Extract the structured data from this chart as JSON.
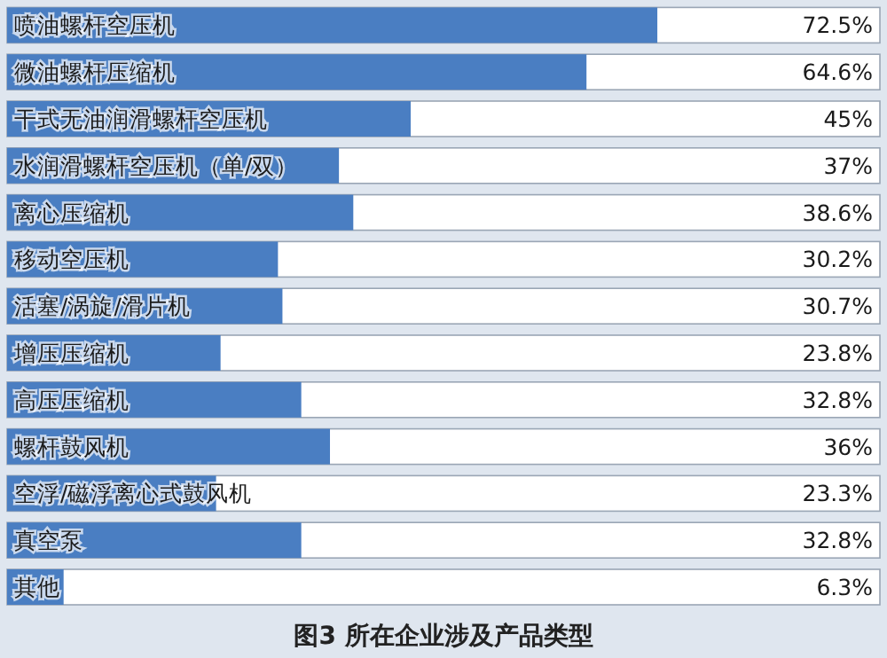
{
  "chart_data": {
    "type": "bar",
    "orientation": "horizontal",
    "title": "图3 所在企业涉及产品类型",
    "categories": [
      "喷油螺杆空压机",
      "微油螺杆压缩机",
      "干式无油润滑螺杆空压机",
      "水润滑螺杆空压机（单/双）",
      "离心压缩机",
      "移动空压机",
      "活塞/涡旋/滑片机",
      "增压压缩机",
      "高压压缩机",
      "螺杆鼓风机",
      "空浮/磁浮离心式鼓风机",
      "真空泵",
      "其他"
    ],
    "values": [
      72.5,
      64.6,
      45,
      37,
      38.6,
      30.2,
      30.7,
      23.8,
      32.8,
      36,
      23.3,
      32.8,
      6.3
    ],
    "value_labels": [
      "72.5%",
      "64.6%",
      "45%",
      "37%",
      "38.6%",
      "30.2%",
      "30.7%",
      "23.8%",
      "32.8%",
      "36%",
      "23.3%",
      "32.8%",
      "6.3%"
    ],
    "color": "#4a7ec2"
  }
}
